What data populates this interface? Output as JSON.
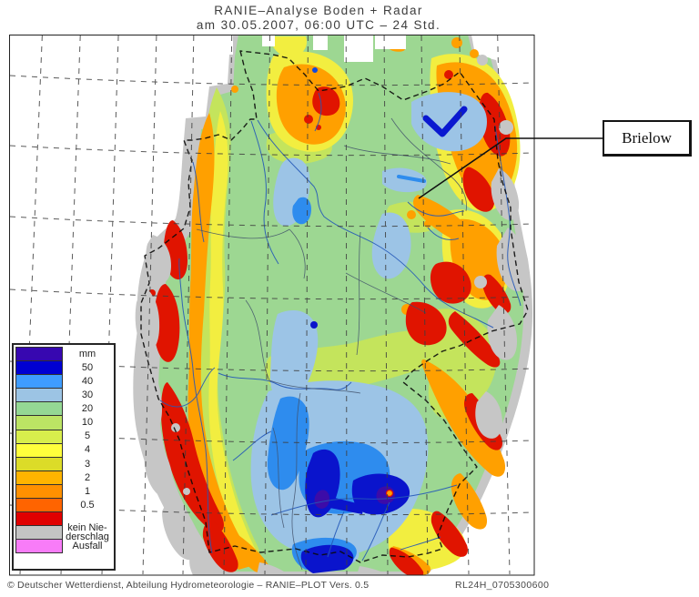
{
  "title": {
    "line1": "RANIE–Analyse Boden + Radar",
    "line2": "am 30.05.2007, 06:00 UTC – 24 Std."
  },
  "annotation": {
    "label": "Brielow"
  },
  "legend": {
    "rows": [
      {
        "color": "#3708B0",
        "label": "mm"
      },
      {
        "color": "#0000D2",
        "label": "50"
      },
      {
        "color": "#3E9CFF",
        "label": "40"
      },
      {
        "color": "#9CC4E4",
        "label": "30"
      },
      {
        "color": "#94D894",
        "label": "20"
      },
      {
        "color": "#BCE464",
        "label": "10"
      },
      {
        "color": "#D8EE4C",
        "label": "5"
      },
      {
        "color": "#FFFF3C",
        "label": "4"
      },
      {
        "color": "#DCDC28",
        "label": "3"
      },
      {
        "color": "#FFB400",
        "label": "2"
      },
      {
        "color": "#FF9000",
        "label": "1"
      },
      {
        "color": "#FF6400",
        "label": "0.5"
      },
      {
        "color": "#E00000",
        "label": ""
      },
      {
        "color": "#C4C4C4",
        "label": "kein Nie-\nderschlag"
      },
      {
        "color": "#F87CF8",
        "label": "Ausfall"
      }
    ]
  },
  "footer": {
    "left": "© Deutscher Wetterdienst, Abteilung Hydrometeorologie – RANIE–PLOT Vers. 0.5",
    "right": "RL24H_0705300600"
  }
}
